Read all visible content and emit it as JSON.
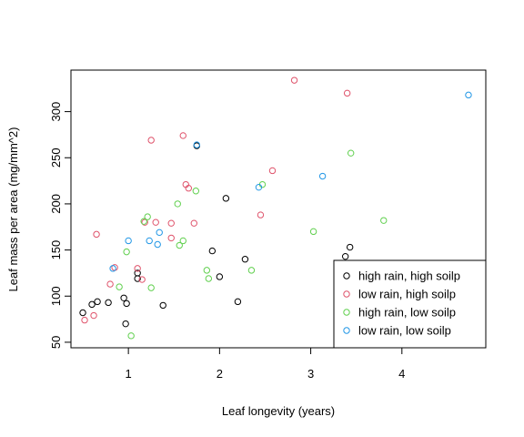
{
  "chart_data": {
    "type": "scatter",
    "title": "",
    "xlabel": "Leaf longevity (years)",
    "ylabel": "Leaf mass per area (mg/mm^2)",
    "xlim": [
      0.37,
      4.92
    ],
    "ylim": [
      44,
      345
    ],
    "x_ticks": [
      1,
      2,
      3,
      4
    ],
    "y_ticks": [
      50,
      100,
      150,
      200,
      250,
      300
    ],
    "grid": false,
    "legend_position": "bottom-right",
    "series": [
      {
        "name": "high rain, high soilp",
        "color": "#000000",
        "points": [
          {
            "x": 0.5,
            "y": 82
          },
          {
            "x": 0.6,
            "y": 91
          },
          {
            "x": 0.66,
            "y": 94
          },
          {
            "x": 0.78,
            "y": 93
          },
          {
            "x": 0.95,
            "y": 98
          },
          {
            "x": 0.98,
            "y": 92
          },
          {
            "x": 0.97,
            "y": 70
          },
          {
            "x": 1.1,
            "y": 125
          },
          {
            "x": 1.1,
            "y": 119
          },
          {
            "x": 1.38,
            "y": 90
          },
          {
            "x": 1.75,
            "y": 263
          },
          {
            "x": 1.92,
            "y": 149
          },
          {
            "x": 2.0,
            "y": 121
          },
          {
            "x": 2.07,
            "y": 206
          },
          {
            "x": 2.2,
            "y": 94
          },
          {
            "x": 2.28,
            "y": 140
          },
          {
            "x": 3.38,
            "y": 143
          },
          {
            "x": 3.43,
            "y": 153
          }
        ]
      },
      {
        "name": "low rain, high soilp",
        "color": "#DF536B",
        "points": [
          {
            "x": 0.52,
            "y": 74
          },
          {
            "x": 0.62,
            "y": 79
          },
          {
            "x": 0.65,
            "y": 167
          },
          {
            "x": 0.8,
            "y": 113
          },
          {
            "x": 0.85,
            "y": 131
          },
          {
            "x": 1.1,
            "y": 130
          },
          {
            "x": 1.15,
            "y": 118
          },
          {
            "x": 1.18,
            "y": 180
          },
          {
            "x": 1.25,
            "y": 269
          },
          {
            "x": 1.3,
            "y": 180
          },
          {
            "x": 1.47,
            "y": 163
          },
          {
            "x": 1.47,
            "y": 179
          },
          {
            "x": 1.6,
            "y": 274
          },
          {
            "x": 1.63,
            "y": 221
          },
          {
            "x": 1.66,
            "y": 217
          },
          {
            "x": 1.72,
            "y": 179
          },
          {
            "x": 2.45,
            "y": 188
          },
          {
            "x": 2.58,
            "y": 236
          },
          {
            "x": 2.82,
            "y": 334
          },
          {
            "x": 3.4,
            "y": 320
          }
        ]
      },
      {
        "name": "high rain, low soilp",
        "color": "#61D04F",
        "points": [
          {
            "x": 0.9,
            "y": 110
          },
          {
            "x": 0.98,
            "y": 148
          },
          {
            "x": 1.03,
            "y": 57
          },
          {
            "x": 1.17,
            "y": 181
          },
          {
            "x": 1.21,
            "y": 186
          },
          {
            "x": 1.25,
            "y": 109
          },
          {
            "x": 1.54,
            "y": 200
          },
          {
            "x": 1.56,
            "y": 155
          },
          {
            "x": 1.6,
            "y": 160
          },
          {
            "x": 1.74,
            "y": 214
          },
          {
            "x": 1.86,
            "y": 128
          },
          {
            "x": 1.88,
            "y": 119
          },
          {
            "x": 2.35,
            "y": 128
          },
          {
            "x": 2.47,
            "y": 221
          },
          {
            "x": 3.03,
            "y": 170
          },
          {
            "x": 3.44,
            "y": 255
          },
          {
            "x": 3.8,
            "y": 182
          }
        ]
      },
      {
        "name": "low rain, low soilp",
        "color": "#2297E6",
        "points": [
          {
            "x": 0.83,
            "y": 130
          },
          {
            "x": 1.0,
            "y": 160
          },
          {
            "x": 1.23,
            "y": 160
          },
          {
            "x": 1.32,
            "y": 156
          },
          {
            "x": 1.34,
            "y": 169
          },
          {
            "x": 1.75,
            "y": 264
          },
          {
            "x": 2.43,
            "y": 218
          },
          {
            "x": 3.13,
            "y": 230
          },
          {
            "x": 4.73,
            "y": 318
          }
        ]
      }
    ]
  }
}
